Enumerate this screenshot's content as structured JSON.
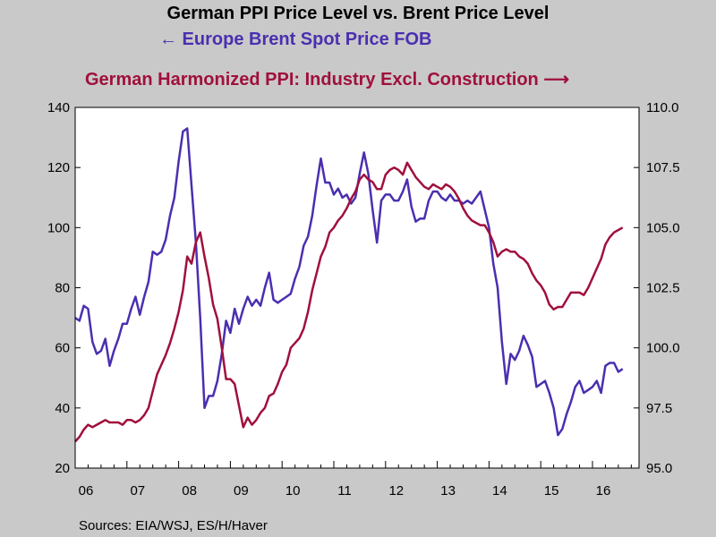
{
  "chart_data": {
    "type": "line",
    "title": "German PPI Price Level vs. Brent Price Level",
    "source": "Sources:  EIA/WSJ, ES/H/Haver",
    "x_tick_labels": [
      "06",
      "07",
      "08",
      "09",
      "10",
      "11",
      "12",
      "13",
      "14",
      "15",
      "16"
    ],
    "x_range": [
      2006.0,
      2016.9
    ],
    "left_axis": {
      "ylim": [
        20,
        140
      ],
      "ticks": [
        "20",
        "40",
        "60",
        "80",
        "100",
        "120",
        "140"
      ]
    },
    "right_axis": {
      "ylim": [
        95.0,
        110.0
      ],
      "ticks": [
        "95.0",
        "97.5",
        "100.0",
        "102.5",
        "105.0",
        "107.5",
        "110.0"
      ]
    },
    "grid": false,
    "series": [
      {
        "name": "Europe Brent Spot Price FOB",
        "legend_label": "← Europe Brent Spot Price FOB",
        "axis": "left",
        "color": "#4b2fb0",
        "start": 2006.0,
        "step_months": 1,
        "values": [
          70,
          69,
          74,
          73,
          62,
          58,
          59,
          63,
          54,
          59,
          63,
          68,
          68,
          73,
          77,
          71,
          77,
          82,
          92,
          91,
          92,
          96,
          104,
          110,
          122,
          132,
          133,
          114,
          95,
          70,
          40,
          44,
          44,
          49,
          58,
          69,
          65,
          73,
          68,
          73,
          77,
          74,
          76,
          74,
          80,
          85,
          76,
          75,
          76,
          77,
          78,
          83,
          87,
          94,
          97,
          104,
          114,
          123,
          115,
          115,
          111,
          113,
          110,
          111,
          108,
          110,
          118,
          125,
          118,
          106,
          95,
          109,
          111,
          111,
          109,
          109,
          112,
          116,
          107,
          102,
          103,
          103,
          109,
          112,
          112,
          110,
          109,
          111,
          109,
          109,
          108,
          109,
          108,
          110,
          112,
          106,
          100,
          88,
          80,
          62,
          48,
          58,
          56,
          59,
          64,
          61,
          57,
          47,
          48,
          49,
          45,
          40,
          31,
          33,
          38,
          42,
          47,
          49,
          45,
          46,
          47,
          49,
          45,
          54,
          55,
          55,
          52,
          53
        ]
      },
      {
        "name": "German Harmonized PPI: Industry Excl. Construction",
        "legend_label": "German Harmonized PPI: Industry Excl. Construction ⟶",
        "axis": "right",
        "color": "#a0103c",
        "start": 2006.0,
        "step_months": 1,
        "values": [
          96.1,
          96.3,
          96.6,
          96.8,
          96.7,
          96.8,
          96.9,
          97.0,
          96.9,
          96.9,
          96.9,
          96.8,
          97.0,
          97.0,
          96.9,
          97.0,
          97.2,
          97.5,
          98.2,
          98.9,
          99.3,
          99.7,
          100.2,
          100.8,
          101.5,
          102.4,
          103.8,
          103.5,
          104.4,
          104.8,
          103.8,
          102.9,
          101.8,
          101.2,
          100.0,
          98.7,
          98.7,
          98.5,
          97.6,
          96.7,
          97.1,
          96.8,
          97.0,
          97.3,
          97.5,
          98.0,
          98.1,
          98.5,
          99.0,
          99.3,
          100.0,
          100.2,
          100.4,
          100.8,
          101.5,
          102.4,
          103.1,
          103.8,
          104.2,
          104.8,
          105.0,
          105.3,
          105.5,
          105.8,
          106.2,
          106.5,
          107.0,
          107.2,
          107.0,
          106.9,
          106.6,
          106.6,
          107.2,
          107.4,
          107.5,
          107.4,
          107.2,
          107.7,
          107.4,
          107.1,
          106.9,
          106.7,
          106.6,
          106.8,
          106.7,
          106.6,
          106.8,
          106.7,
          106.5,
          106.2,
          105.8,
          105.5,
          105.3,
          105.2,
          105.1,
          105.1,
          104.8,
          104.4,
          103.8,
          104.0,
          104.1,
          104.0,
          104.0,
          103.8,
          103.7,
          103.5,
          103.1,
          102.8,
          102.6,
          102.3,
          101.8,
          101.6,
          101.7,
          101.7,
          102.0,
          102.3,
          102.3,
          102.3,
          102.2,
          102.5,
          102.9,
          103.3,
          103.7,
          104.3,
          104.6,
          104.8,
          104.9,
          105.0
        ]
      }
    ]
  }
}
